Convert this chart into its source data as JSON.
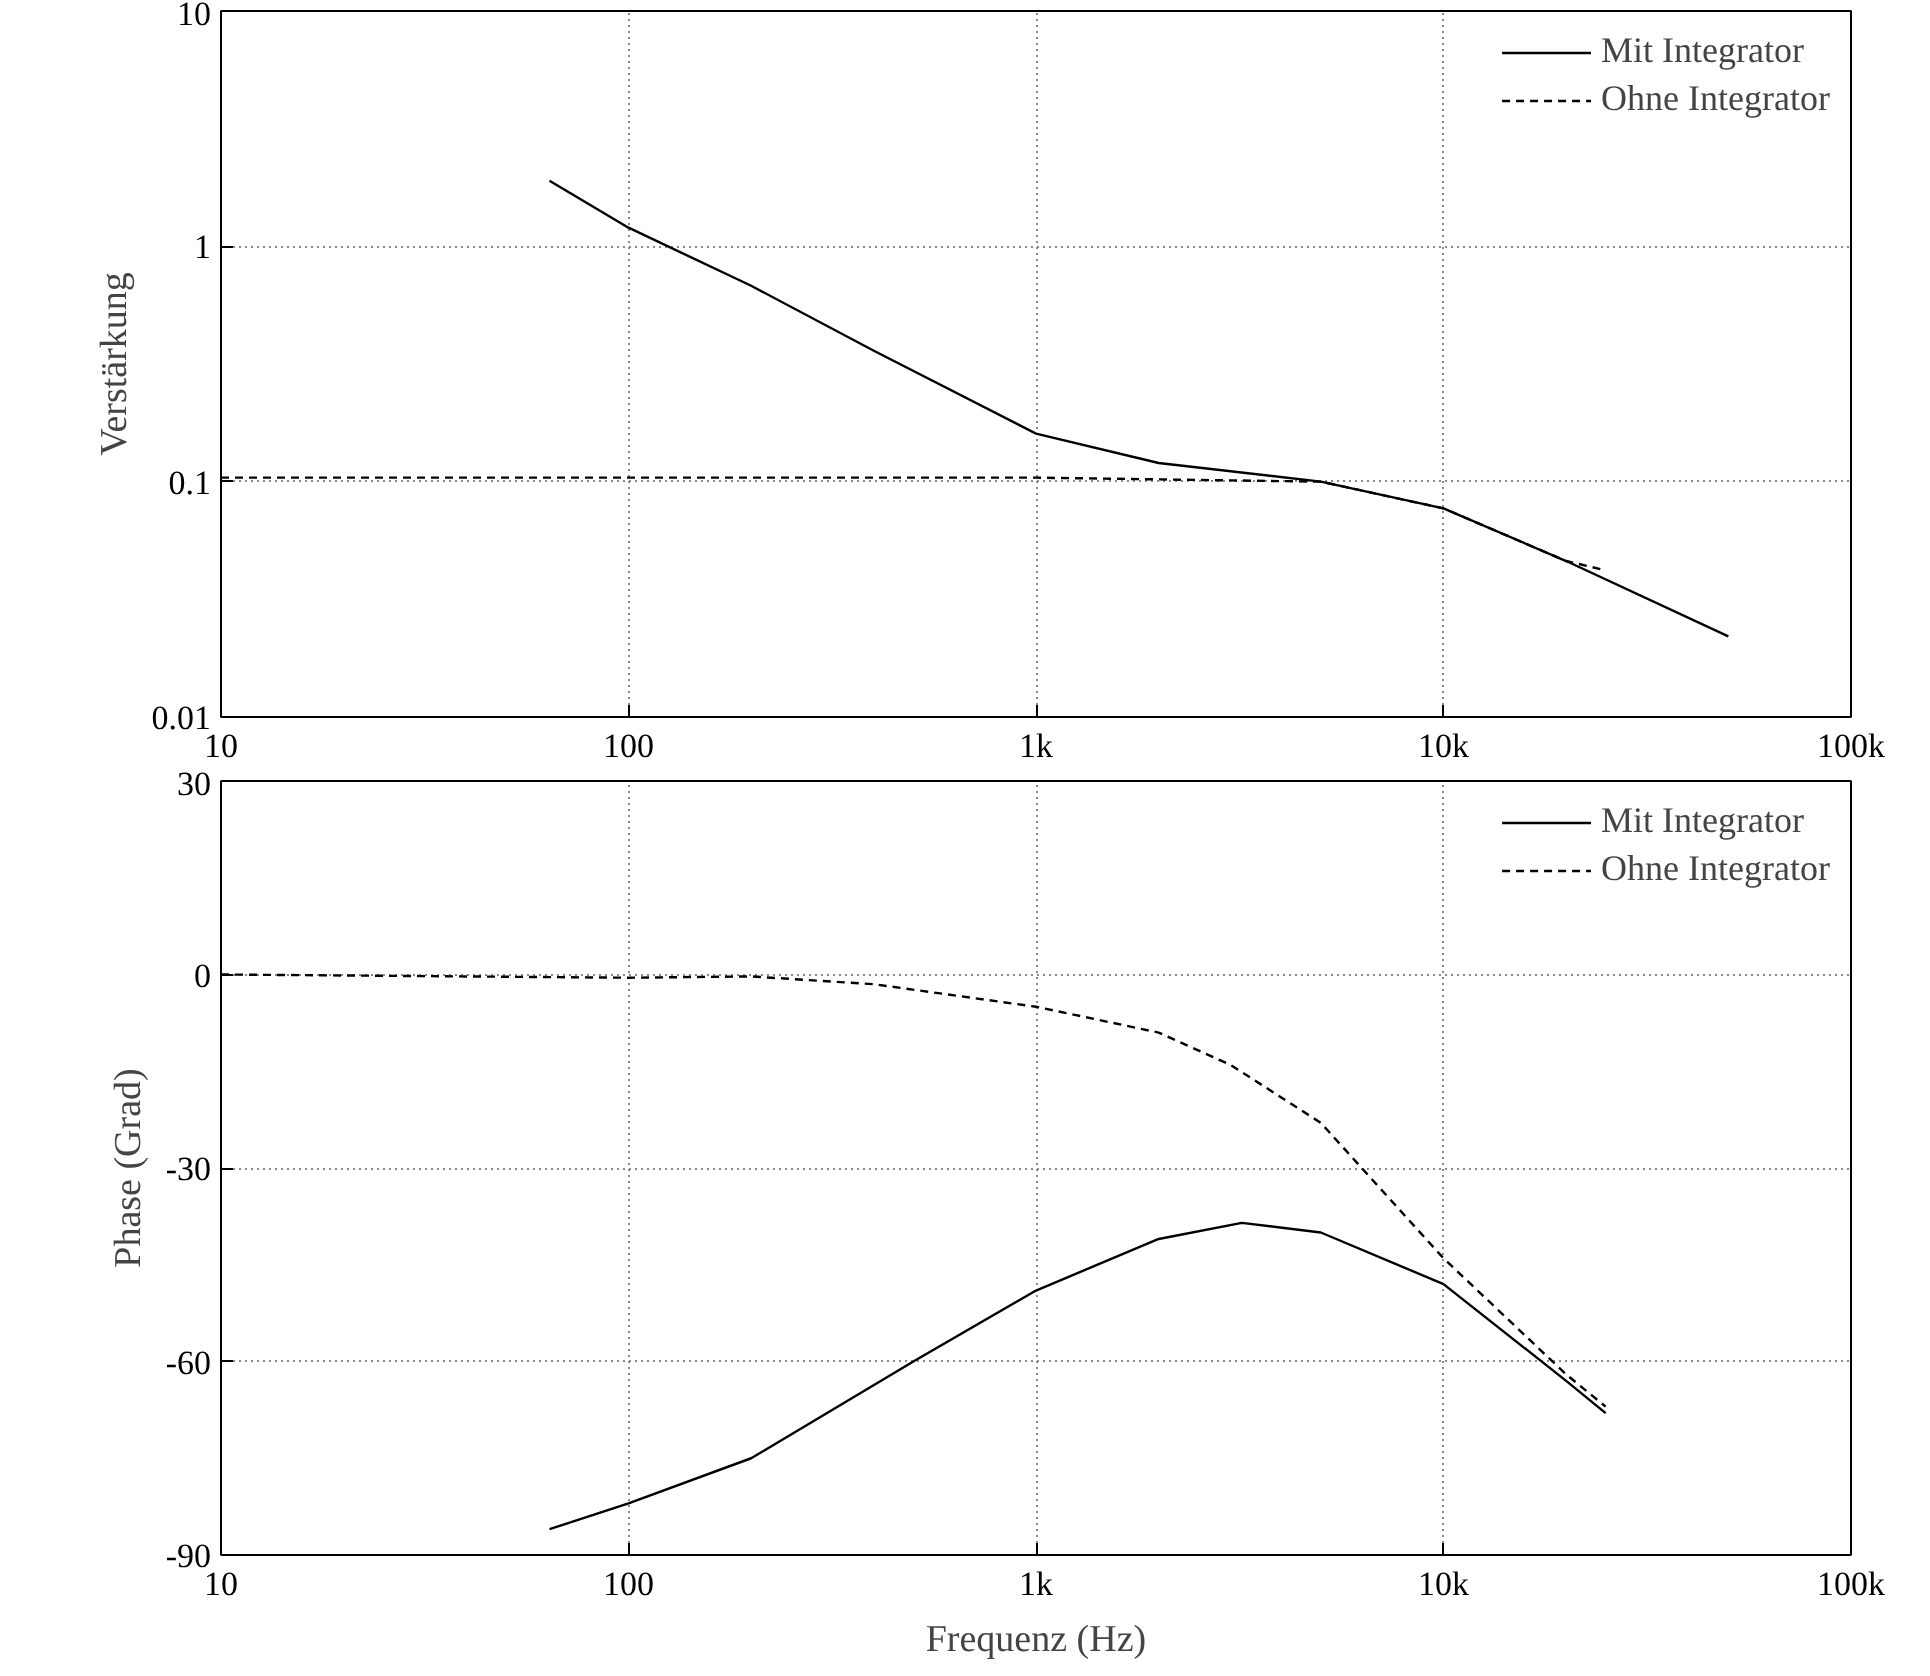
{
  "chart_data": [
    {
      "type": "line",
      "ylabel": "Verstärkung",
      "log": "xy",
      "grid": true,
      "legend": "top right",
      "xlim": [
        10,
        100000
      ],
      "ylim": [
        0.01,
        10
      ],
      "xticks": [
        10,
        100,
        {
          "value": 1000,
          "label": "1k"
        },
        {
          "value": 10000,
          "label": "10k"
        },
        {
          "value": 100000,
          "label": "100k"
        }
      ],
      "yticks": [
        0.01,
        0.1,
        1,
        10
      ],
      "series": [
        {
          "name": "Mit Integrator",
          "color": "#000000",
          "line_style": "solid",
          "x": [
            64,
            100,
            200,
            400,
            1000,
            2000,
            5000,
            10000,
            20000,
            50000
          ],
          "values": [
            1.9,
            1.2,
            0.68,
            0.36,
            0.16,
            0.12,
            0.1,
            0.077,
            0.046,
            0.022
          ]
        },
        {
          "name": "Ohne Integrator",
          "color": "#000000",
          "line_style": "dashed",
          "x": [
            10,
            100,
            1000,
            5000,
            10000,
            20000,
            25000
          ],
          "values": [
            0.104,
            0.104,
            0.104,
            0.1,
            0.077,
            0.046,
            0.042
          ]
        }
      ]
    },
    {
      "type": "line",
      "xlabel": "Frequenz (Hz)",
      "ylabel": "Phase (Grad)",
      "log": "x",
      "grid": true,
      "legend": "top right",
      "xlim": [
        10,
        100000
      ],
      "ylim": [
        -90,
        30
      ],
      "xticks": [
        10,
        100,
        {
          "value": 1000,
          "label": "1k"
        },
        {
          "value": 10000,
          "label": "10k"
        },
        {
          "value": 100000,
          "label": "100k"
        }
      ],
      "yticks": [
        -90,
        -60,
        -30,
        0,
        30
      ],
      "series": [
        {
          "name": "Mit Integrator",
          "color": "#000000",
          "line_style": "solid",
          "x": [
            64,
            100,
            200,
            500,
            1000,
            2000,
            3200,
            5000,
            10000,
            20000,
            25000
          ],
          "values": [
            -86,
            -82,
            -75,
            -60,
            -49,
            -41,
            -38.5,
            -40,
            -48,
            -63,
            -68
          ]
        },
        {
          "name": "Ohne Integrator",
          "color": "#000000",
          "line_style": "dashed",
          "x": [
            10,
            100,
            200,
            400,
            1000,
            2000,
            3000,
            5000,
            10000,
            20000,
            25000
          ],
          "values": [
            0,
            -0.5,
            -0.3,
            -1.5,
            -5,
            -9,
            -14,
            -23,
            -44,
            -62,
            -67
          ]
        }
      ]
    }
  ]
}
